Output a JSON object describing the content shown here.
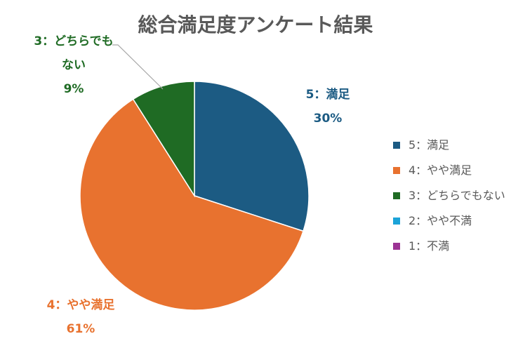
{
  "chart_data": {
    "type": "pie",
    "title": "総合満足度アンケート結果",
    "categories": [
      "5：満足",
      "4：やや満足",
      "3：どちらでもない",
      "2：やや不満",
      "1：不満"
    ],
    "values": [
      30,
      61,
      9,
      0,
      0
    ],
    "percent_labels": [
      "30%",
      "61%",
      "9%"
    ],
    "colors": [
      "#1c5b83",
      "#e8722f",
      "#1f6b24",
      "#1ba3d8",
      "#9c3494"
    ],
    "legend_position": "right"
  },
  "labels": {
    "slice5_line1": "5：満足",
    "slice5_pct": "30%",
    "slice4_line1": "4：やや満足",
    "slice4_pct": "61%",
    "slice3_line1": "3：どちらでも",
    "slice3_line2": "ない",
    "slice3_pct": "9%"
  }
}
